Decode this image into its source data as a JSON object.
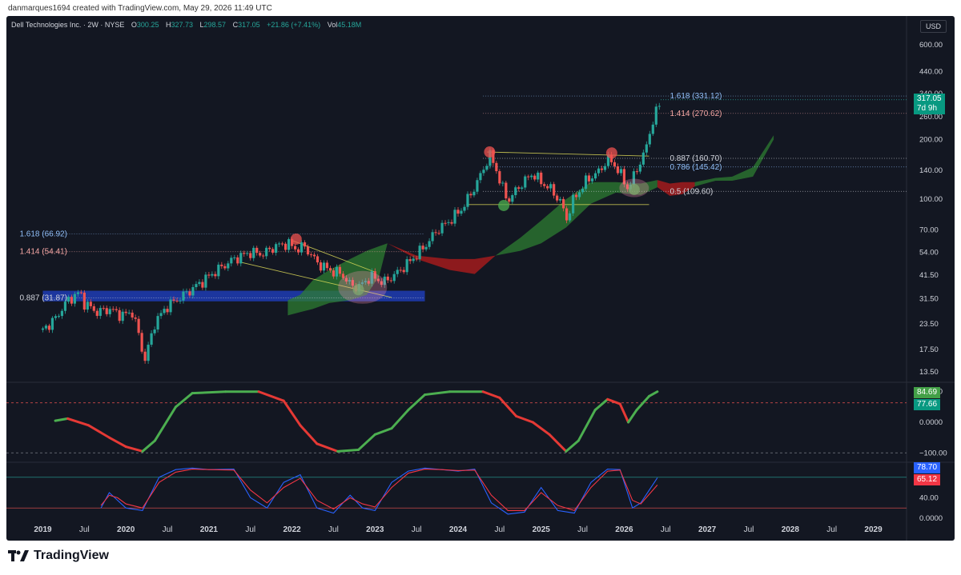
{
  "credit": "danmarques1694 created with TradingView.com, May 29, 2026 11:49 UTC",
  "brand": "TradingView",
  "header": {
    "symbol": "Dell Technologies Inc. · 2W · NYSE",
    "o_label": "O",
    "o": "300.25",
    "h_label": "H",
    "h": "327.73",
    "l_label": "L",
    "l": "298.57",
    "c_label": "C",
    "c": "317.05",
    "change": "+21.86 (+7.41%)",
    "vol_label": "Vol",
    "vol": "45.18M"
  },
  "currency": "USD",
  "last_price_badge": {
    "price": "317.05",
    "countdown": "7d 9h"
  },
  "colors": {
    "bg": "#131722",
    "up": "#26a69a",
    "down": "#ef5350",
    "grid": "#2a2e39",
    "text": "#d1d4dc",
    "fib_blue": "#90bff9",
    "fib_red": "#f7a7a5",
    "cloud_green": "#2e7d32",
    "cloud_red": "#b71c1c",
    "zone_blue": "#1e3cb4",
    "macd_up": "#4caf50",
    "macd_down": "#e53935",
    "stoch_k": "#2962ff",
    "stoch_d": "#f23645"
  },
  "chart_data": [
    {
      "type": "candlestick",
      "title": "Dell Technologies Inc. · 2W · NYSE",
      "y_scale": "log",
      "y_ticks": [
        "600.00",
        "440.00",
        "340.00",
        "260.00",
        "200.00",
        "140.00",
        "100.00",
        "70.00",
        "54.00",
        "41.50",
        "31.50",
        "23.50",
        "17.50",
        "13.50"
      ],
      "x_ticks": [
        "2019",
        "Jul",
        "2020",
        "Jul",
        "2021",
        "Jul",
        "2022",
        "Jul",
        "2023",
        "Jul",
        "2024",
        "Jul",
        "2025",
        "Jul",
        "2026",
        "Jul",
        "2027",
        "Jul",
        "2028",
        "Jul",
        "2029"
      ],
      "price_path": [
        [
          2019.0,
          22
        ],
        [
          2019.15,
          25
        ],
        [
          2019.3,
          31
        ],
        [
          2019.45,
          34
        ],
        [
          2019.5,
          30
        ],
        [
          2019.65,
          27
        ],
        [
          2019.8,
          28
        ],
        [
          2019.95,
          26
        ],
        [
          2020.08,
          27
        ],
        [
          2020.18,
          19
        ],
        [
          2020.22,
          15
        ],
        [
          2020.35,
          24
        ],
        [
          2020.5,
          29
        ],
        [
          2020.7,
          33
        ],
        [
          2020.9,
          38
        ],
        [
          2021.1,
          44
        ],
        [
          2021.3,
          50
        ],
        [
          2021.5,
          54
        ],
        [
          2021.65,
          53
        ],
        [
          2021.8,
          58
        ],
        [
          2021.95,
          60
        ],
        [
          2022.05,
          56
        ],
        [
          2022.15,
          58
        ],
        [
          2022.3,
          48
        ],
        [
          2022.45,
          44
        ],
        [
          2022.6,
          42
        ],
        [
          2022.7,
          37
        ],
        [
          2022.8,
          36
        ],
        [
          2022.95,
          41
        ],
        [
          2023.1,
          38
        ],
        [
          2023.25,
          42
        ],
        [
          2023.45,
          50
        ],
        [
          2023.6,
          58
        ],
        [
          2023.75,
          70
        ],
        [
          2023.9,
          78
        ],
        [
          2024.05,
          90
        ],
        [
          2024.2,
          115
        ],
        [
          2024.3,
          140
        ],
        [
          2024.38,
          168
        ],
        [
          2024.45,
          145
        ],
        [
          2024.52,
          118
        ],
        [
          2024.6,
          98
        ],
        [
          2024.75,
          118
        ],
        [
          2024.9,
          135
        ],
        [
          2025.0,
          122
        ],
        [
          2025.12,
          112
        ],
        [
          2025.25,
          95
        ],
        [
          2025.3,
          78
        ],
        [
          2025.38,
          98
        ],
        [
          2025.55,
          125
        ],
        [
          2025.7,
          138
        ],
        [
          2025.8,
          160
        ],
        [
          2025.88,
          150
        ],
        [
          2025.95,
          135
        ],
        [
          2026.05,
          112
        ],
        [
          2026.15,
          142
        ],
        [
          2026.25,
          172
        ],
        [
          2026.32,
          230
        ],
        [
          2026.4,
          285
        ],
        [
          2026.44,
          317
        ]
      ],
      "ichimoku_cloud": {
        "green_top": [
          [
            2021.95,
            31
          ],
          [
            2022.1,
            33
          ],
          [
            2022.25,
            39
          ],
          [
            2022.45,
            44
          ],
          [
            2022.7,
            50
          ],
          [
            2022.9,
            55
          ],
          [
            2023.05,
            58
          ],
          [
            2023.15,
            60
          ]
        ],
        "green_bottom": [
          [
            2021.95,
            26
          ],
          [
            2022.1,
            27
          ],
          [
            2022.25,
            28
          ],
          [
            2022.45,
            30
          ],
          [
            2022.7,
            31
          ],
          [
            2022.9,
            33
          ],
          [
            2023.05,
            41
          ],
          [
            2023.15,
            60
          ]
        ],
        "red_top": [
          [
            2023.15,
            60
          ],
          [
            2023.5,
            52
          ],
          [
            2023.9,
            50
          ],
          [
            2024.2,
            50
          ],
          [
            2024.45,
            52
          ]
        ],
        "red_bottom": [
          [
            2023.15,
            60
          ],
          [
            2023.5,
            50
          ],
          [
            2023.9,
            44
          ],
          [
            2024.2,
            42
          ],
          [
            2024.45,
            52
          ]
        ],
        "green2_top": [
          [
            2024.45,
            52
          ],
          [
            2024.75,
            64
          ],
          [
            2025.0,
            78
          ],
          [
            2025.3,
            100
          ],
          [
            2025.6,
            122
          ],
          [
            2025.9,
            122
          ],
          [
            2026.2,
            120
          ],
          [
            2026.4,
            125
          ]
        ],
        "green2_bottom": [
          [
            2024.45,
            52
          ],
          [
            2024.75,
            55
          ],
          [
            2025.0,
            60
          ],
          [
            2025.3,
            72
          ],
          [
            2025.6,
            95
          ],
          [
            2025.9,
            108
          ],
          [
            2026.2,
            105
          ],
          [
            2026.4,
            115
          ]
        ],
        "red2_top": [
          [
            2026.4,
            125
          ],
          [
            2026.55,
            120
          ],
          [
            2026.7,
            122
          ],
          [
            2026.85,
            122
          ]
        ],
        "red2_bottom": [
          [
            2026.4,
            115
          ],
          [
            2026.55,
            104
          ],
          [
            2026.7,
            106
          ],
          [
            2026.85,
            116
          ]
        ],
        "green3_top": [
          [
            2026.85,
            122
          ],
          [
            2027.1,
            128
          ],
          [
            2027.3,
            130
          ],
          [
            2027.55,
            145
          ],
          [
            2027.8,
            210
          ]
        ],
        "green3_bottom": [
          [
            2026.85,
            116
          ],
          [
            2027.1,
            124
          ],
          [
            2027.3,
            124
          ],
          [
            2027.55,
            130
          ],
          [
            2027.8,
            200
          ]
        ]
      },
      "fib_levels_left": [
        {
          "label": "1.618 (66.92)",
          "value": 66.92,
          "color": "#90bff9"
        },
        {
          "label": "1.414 (54.41)",
          "value": 54.41,
          "color": "#f7a7a5"
        },
        {
          "label": "0.887 (31.87)",
          "value": 31.87,
          "color": "#d1d4dc"
        }
      ],
      "fib_levels_right": [
        {
          "label": "1.618 (331.12)",
          "value": 331.12,
          "color": "#90bff9"
        },
        {
          "label": "1.414 (270.62)",
          "value": 270.62,
          "color": "#f7a7a5"
        },
        {
          "label": "0.887 (160.70)",
          "value": 160.7,
          "color": "#d1d4dc"
        },
        {
          "label": "0.786 (145.42)",
          "value": 145.42,
          "color": "#90bff9"
        },
        {
          "label": "0.5 (109.60)",
          "value": 109.6,
          "color": "#d1d4dc"
        }
      ],
      "support_zone": {
        "x0": 2019.0,
        "x1": 2023.6,
        "y0": 30.6,
        "y1": 34.6
      },
      "trend_lines": [
        {
          "x0": 2022.0,
          "y0": 62,
          "x1": 2023.0,
          "y1": 43
        },
        {
          "x0": 2021.4,
          "y0": 48,
          "x1": 2023.2,
          "y1": 32
        },
        {
          "x0": 2024.1,
          "y0": 94,
          "x1": 2026.3,
          "y1": 94
        },
        {
          "x0": 2024.35,
          "y0": 173,
          "x1": 2026.3,
          "y1": 165
        }
      ],
      "markers": [
        {
          "x": 2022.05,
          "y": 63,
          "kind": "top"
        },
        {
          "x": 2024.38,
          "y": 173,
          "kind": "top"
        },
        {
          "x": 2025.85,
          "y": 171,
          "kind": "top"
        },
        {
          "x": 2024.55,
          "y": 93,
          "kind": "bottom"
        },
        {
          "x": 2022.8,
          "y": 35,
          "kind": "bottom"
        },
        {
          "x": 2026.12,
          "y": 112,
          "kind": "bottom"
        }
      ]
    },
    {
      "type": "line",
      "name": "macd-oscillator",
      "y_ticks": [
        "100.00",
        "0.0000",
        "−100.00"
      ],
      "values_badges": [
        "84.69",
        "77.66"
      ],
      "ylim": [
        -115,
        115
      ],
      "series": [
        {
          "points": [
            [
              2019.15,
              5
            ],
            [
              2019.3,
              12
            ],
            [
              2019.55,
              -10
            ],
            [
              2019.8,
              -50
            ],
            [
              2020.0,
              -80
            ],
            [
              2020.2,
              -95
            ],
            [
              2020.35,
              -60
            ],
            [
              2020.6,
              50
            ],
            [
              2020.8,
              95
            ],
            [
              2021.2,
              100
            ],
            [
              2021.6,
              100
            ],
            [
              2021.9,
              70
            ],
            [
              2022.1,
              -10
            ],
            [
              2022.3,
              -70
            ],
            [
              2022.55,
              -95
            ],
            [
              2022.8,
              -90
            ],
            [
              2023.0,
              -40
            ],
            [
              2023.2,
              -20
            ],
            [
              2023.4,
              40
            ],
            [
              2023.6,
              90
            ],
            [
              2023.9,
              100
            ],
            [
              2024.3,
              100
            ],
            [
              2024.5,
              80
            ],
            [
              2024.7,
              20
            ],
            [
              2024.9,
              0
            ],
            [
              2025.1,
              -40
            ],
            [
              2025.3,
              -95
            ],
            [
              2025.45,
              -60
            ],
            [
              2025.65,
              40
            ],
            [
              2025.8,
              75
            ],
            [
              2025.95,
              60
            ],
            [
              2026.05,
              0
            ],
            [
              2026.15,
              40
            ],
            [
              2026.3,
              85
            ],
            [
              2026.4,
              100
            ]
          ]
        }
      ]
    },
    {
      "type": "line",
      "name": "stochastic",
      "y_ticks": [
        "40.00",
        "0.0000"
      ],
      "values_badges": [
        "78.70",
        "65.12"
      ],
      "ylim": [
        0,
        100
      ],
      "series": [
        {
          "points": [
            [
              2019.7,
              20
            ],
            [
              2019.8,
              50
            ],
            [
              2019.9,
              35
            ],
            [
              2020.0,
              20
            ],
            [
              2020.2,
              15
            ],
            [
              2020.4,
              80
            ],
            [
              2020.6,
              95
            ],
            [
              2020.8,
              98
            ],
            [
              2021.0,
              95
            ],
            [
              2021.3,
              96
            ],
            [
              2021.5,
              40
            ],
            [
              2021.7,
              20
            ],
            [
              2021.9,
              70
            ],
            [
              2022.1,
              85
            ],
            [
              2022.3,
              20
            ],
            [
              2022.5,
              10
            ],
            [
              2022.7,
              45
            ],
            [
              2022.85,
              20
            ],
            [
              2023.0,
              15
            ],
            [
              2023.2,
              70
            ],
            [
              2023.4,
              92
            ],
            [
              2023.6,
              98
            ],
            [
              2023.8,
              95
            ],
            [
              2024.0,
              92
            ],
            [
              2024.2,
              96
            ],
            [
              2024.4,
              30
            ],
            [
              2024.6,
              8
            ],
            [
              2024.8,
              12
            ],
            [
              2025.0,
              60
            ],
            [
              2025.2,
              15
            ],
            [
              2025.4,
              10
            ],
            [
              2025.6,
              70
            ],
            [
              2025.8,
              96
            ],
            [
              2025.95,
              95
            ],
            [
              2026.1,
              20
            ],
            [
              2026.2,
              30
            ],
            [
              2026.4,
              79
            ]
          ]
        },
        {
          "points": [
            [
              2019.7,
              25
            ],
            [
              2019.8,
              45
            ],
            [
              2019.9,
              40
            ],
            [
              2020.0,
              28
            ],
            [
              2020.2,
              20
            ],
            [
              2020.4,
              70
            ],
            [
              2020.6,
              90
            ],
            [
              2020.8,
              96
            ],
            [
              2021.0,
              95
            ],
            [
              2021.3,
              94
            ],
            [
              2021.5,
              55
            ],
            [
              2021.7,
              30
            ],
            [
              2021.9,
              60
            ],
            [
              2022.1,
              78
            ],
            [
              2022.3,
              35
            ],
            [
              2022.5,
              18
            ],
            [
              2022.7,
              40
            ],
            [
              2022.85,
              28
            ],
            [
              2023.0,
              22
            ],
            [
              2023.2,
              60
            ],
            [
              2023.4,
              88
            ],
            [
              2023.6,
              96
            ],
            [
              2023.8,
              95
            ],
            [
              2024.0,
              93
            ],
            [
              2024.2,
              94
            ],
            [
              2024.4,
              45
            ],
            [
              2024.6,
              15
            ],
            [
              2024.8,
              15
            ],
            [
              2025.0,
              50
            ],
            [
              2025.2,
              25
            ],
            [
              2025.4,
              15
            ],
            [
              2025.6,
              60
            ],
            [
              2025.8,
              92
            ],
            [
              2025.95,
              94
            ],
            [
              2026.1,
              35
            ],
            [
              2026.2,
              28
            ],
            [
              2026.4,
              65
            ]
          ]
        }
      ]
    }
  ]
}
